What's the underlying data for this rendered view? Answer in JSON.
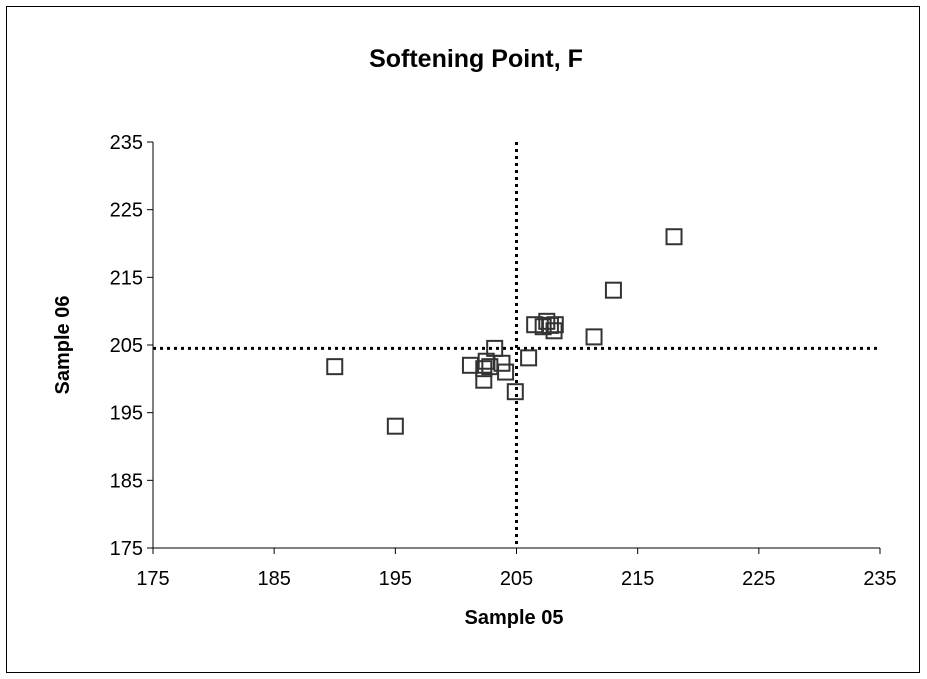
{
  "chart_data": {
    "type": "scatter",
    "title": "Softening Point, F",
    "xlabel": "Sample 05",
    "ylabel": "Sample 06",
    "xlim": [
      175,
      235
    ],
    "ylim": [
      175,
      235
    ],
    "xticks": [
      "175",
      "185",
      "195",
      "205",
      "215",
      "225",
      "235"
    ],
    "yticks": [
      "175",
      "185",
      "195",
      "205",
      "215",
      "225",
      "235"
    ],
    "grid": false,
    "marker": "open-square",
    "reference_lines": {
      "x": 205,
      "y": 204.5,
      "style": "dotted"
    },
    "series": [
      {
        "points": [
          {
            "x": 190.0,
            "y": 201.8
          },
          {
            "x": 195.0,
            "y": 193.0
          },
          {
            "x": 201.2,
            "y": 202.0
          },
          {
            "x": 202.3,
            "y": 201.5
          },
          {
            "x": 202.3,
            "y": 199.8
          },
          {
            "x": 202.5,
            "y": 202.6
          },
          {
            "x": 202.8,
            "y": 201.8
          },
          {
            "x": 203.2,
            "y": 204.5
          },
          {
            "x": 203.8,
            "y": 202.3
          },
          {
            "x": 204.1,
            "y": 201.0
          },
          {
            "x": 204.9,
            "y": 198.1
          },
          {
            "x": 206.0,
            "y": 203.1
          },
          {
            "x": 206.5,
            "y": 208.0
          },
          {
            "x": 207.2,
            "y": 207.7
          },
          {
            "x": 207.5,
            "y": 208.5
          },
          {
            "x": 207.8,
            "y": 207.9
          },
          {
            "x": 208.1,
            "y": 207.1
          },
          {
            "x": 208.2,
            "y": 208.0
          },
          {
            "x": 211.4,
            "y": 206.2
          },
          {
            "x": 213.0,
            "y": 213.1
          },
          {
            "x": 218.0,
            "y": 221.0
          }
        ]
      }
    ]
  }
}
